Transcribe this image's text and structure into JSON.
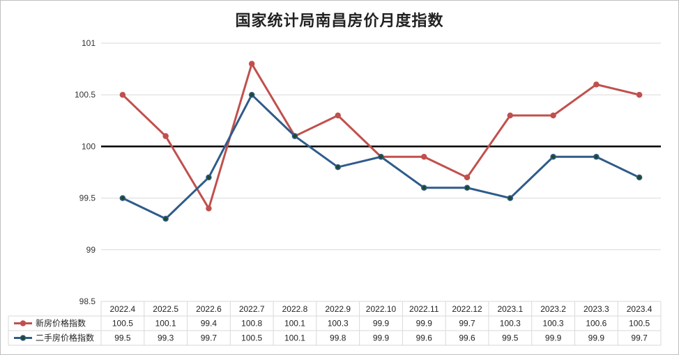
{
  "chart_data": {
    "type": "line",
    "title": "国家统计局南昌房价月度指数",
    "categories": [
      "2022.4",
      "2022.5",
      "2022.6",
      "2022.7",
      "2022.8",
      "2022.9",
      "2022.10",
      "2022.11",
      "2022.12",
      "2023.1",
      "2023.2",
      "2023.3",
      "2023.4"
    ],
    "series": [
      {
        "name": "新房价格指数",
        "color": "#c0504d",
        "values": [
          100.5,
          100.1,
          99.4,
          100.8,
          100.1,
          100.3,
          99.9,
          99.9,
          99.7,
          100.3,
          100.3,
          100.6,
          100.5
        ],
        "labels": [
          "100.5",
          "100.1",
          "99.4",
          "100.8",
          "100.1",
          "100.3",
          "99.9",
          "99.9",
          "99.7",
          "100.3",
          "100.3",
          "100.6",
          "100.5"
        ]
      },
      {
        "name": "二手房价格指数",
        "color": "#2f5b8a",
        "values": [
          99.5,
          99.3,
          99.7,
          100.5,
          100.1,
          99.8,
          99.9,
          99.6,
          99.6,
          99.5,
          99.9,
          99.9,
          99.7
        ],
        "labels": [
          "99.5",
          "99.3",
          "99.7",
          "100.5",
          "100.1",
          "99.8",
          "99.9",
          "99.6",
          "99.6",
          "99.5",
          "99.9",
          "99.9",
          "99.7"
        ]
      }
    ],
    "ylim": [
      98.5,
      101
    ],
    "yticks": [
      "101",
      "100.5",
      "100",
      "99.5",
      "99",
      "98.5"
    ],
    "reference_line": 100,
    "grid": true,
    "legend": "data-table",
    "data_table": true
  }
}
